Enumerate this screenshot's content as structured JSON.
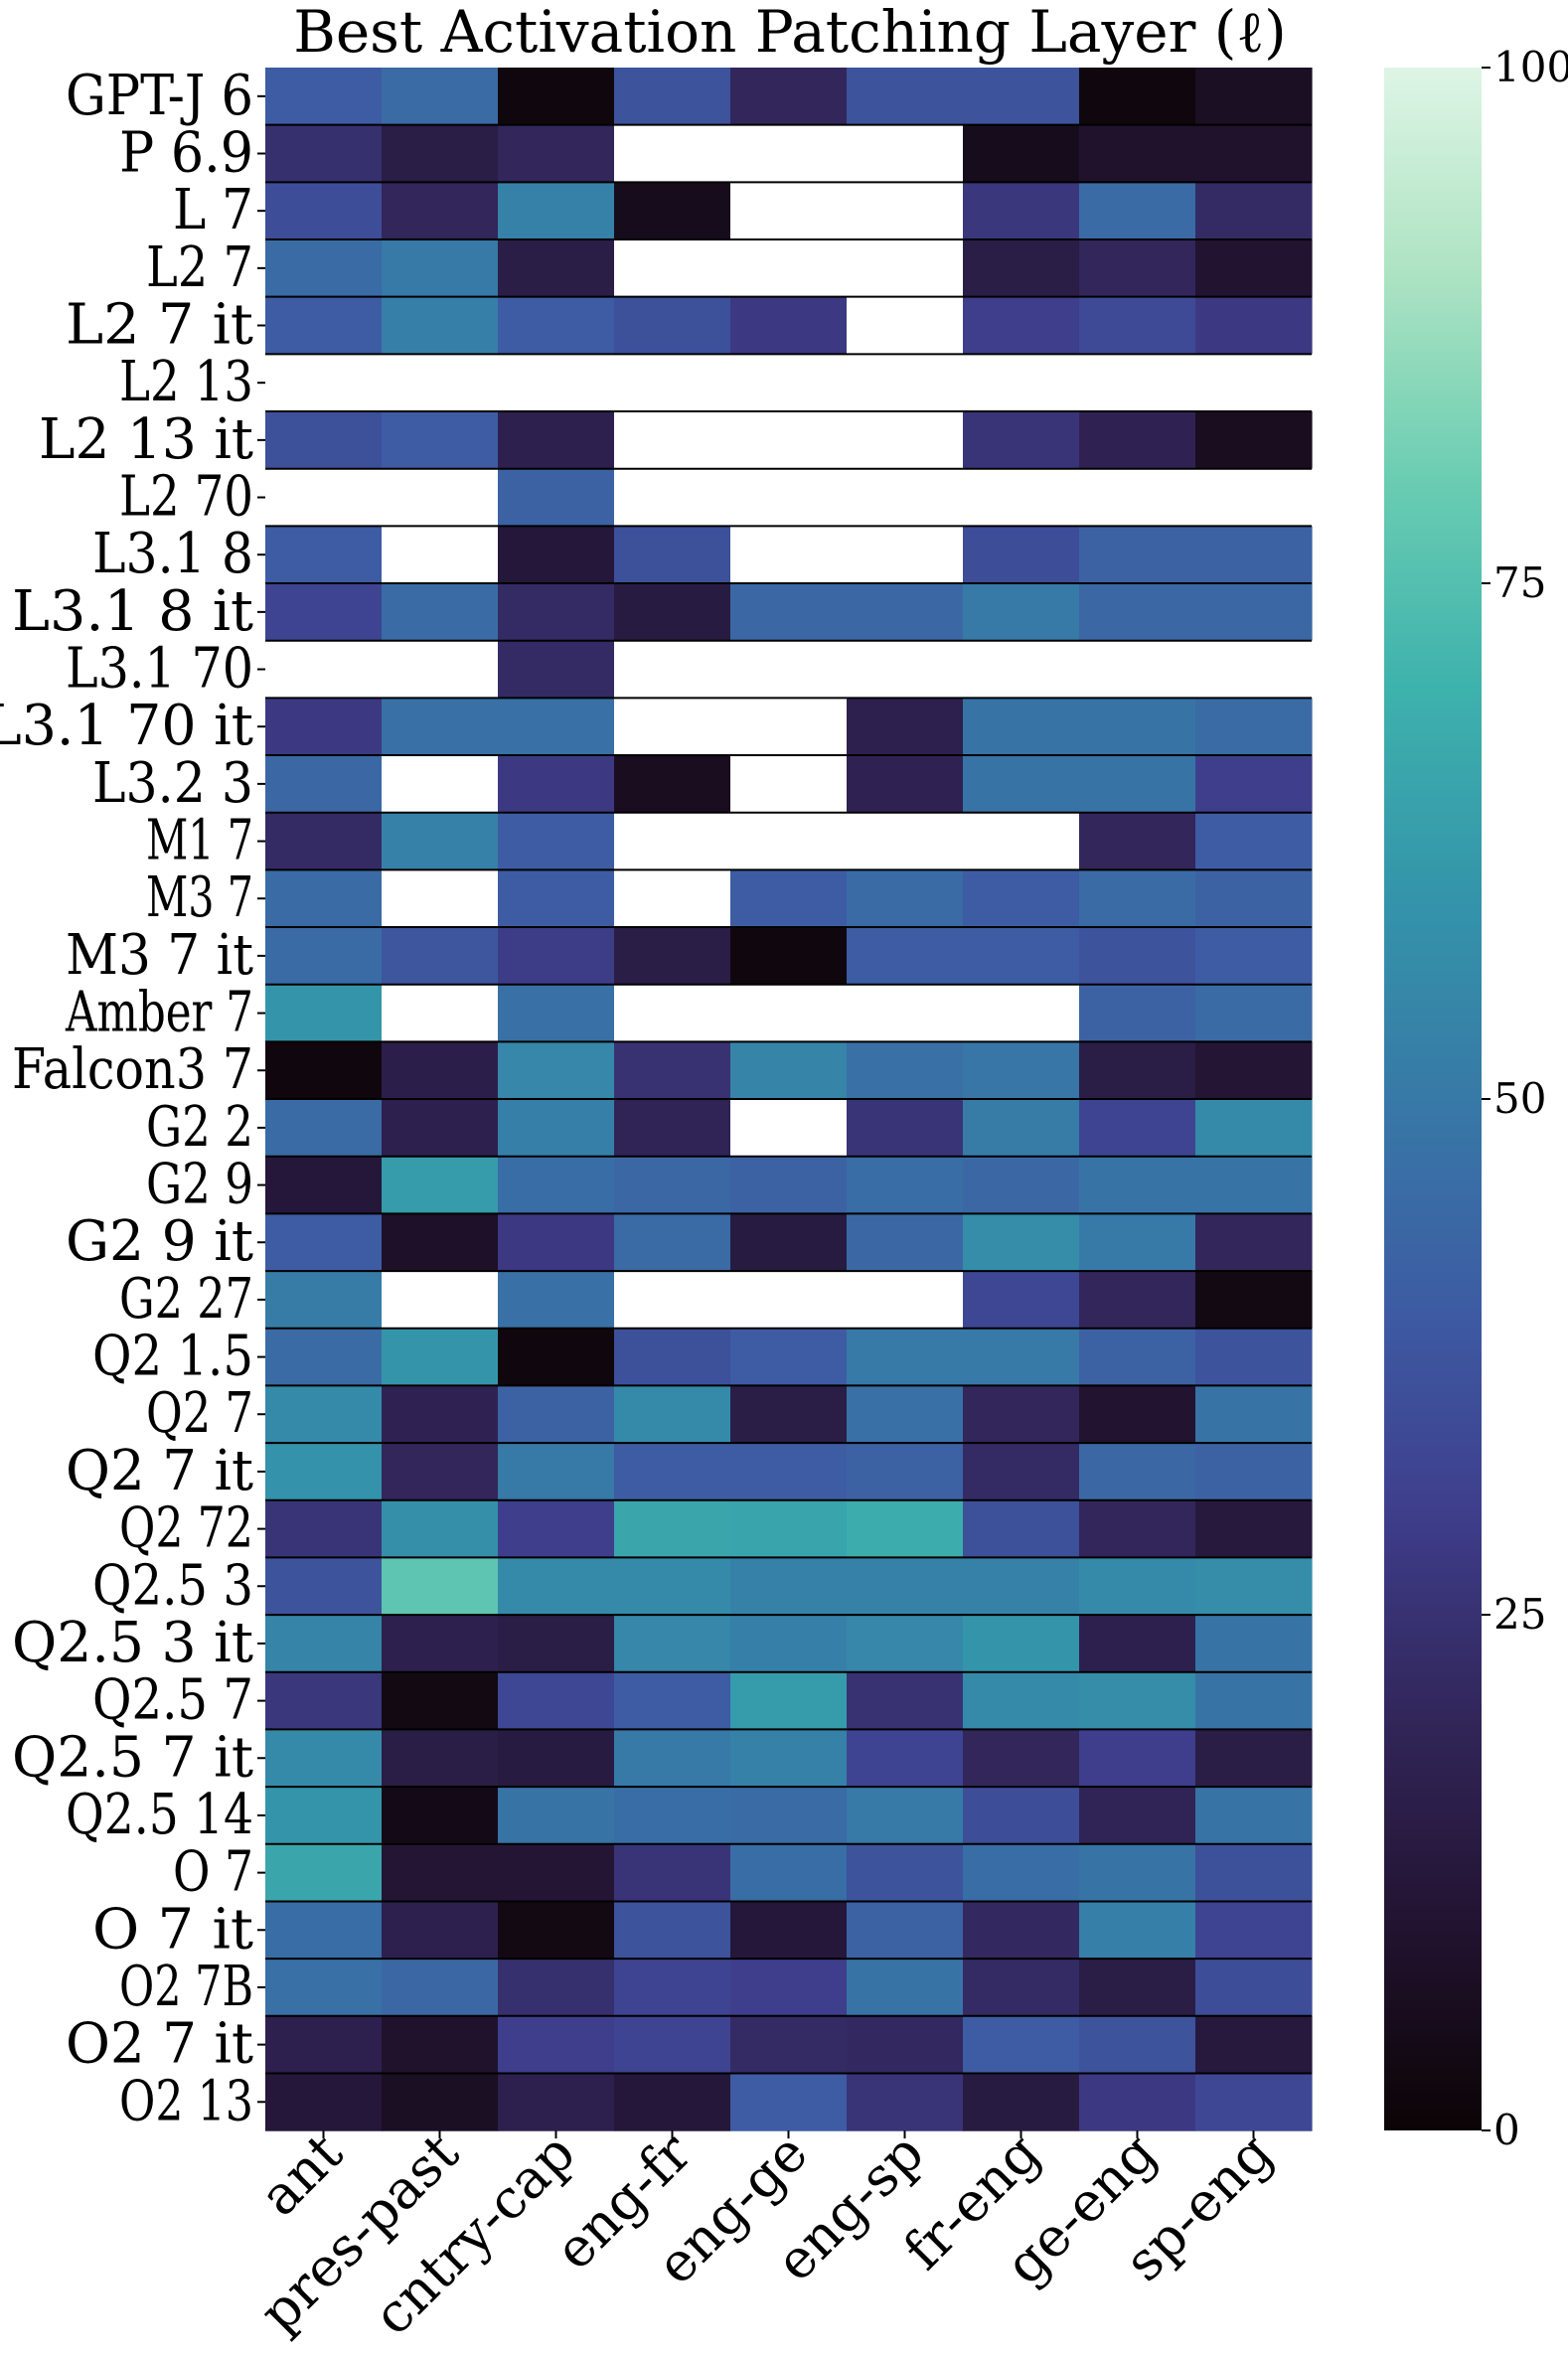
{
  "chart_data": {
    "type": "heatmap",
    "title": "Best Activation Patching Layer (ℓ)",
    "colorbar": {
      "min": 0,
      "max": 100,
      "ticks": [
        "0",
        "25",
        "50",
        "75",
        "100"
      ],
      "colormap": "mako"
    },
    "columns": [
      "ant",
      "pres-past",
      "cntry-cap",
      "eng-fr",
      "eng-ge",
      "eng-sp",
      "fr-eng",
      "ge-eng",
      "sp-eng"
    ],
    "rows": [
      "GPT-J 6",
      "P 6.9",
      "L 7",
      "L2 7",
      "L2 7 it",
      "L2 13",
      "L2 13 it",
      "L2 70",
      "L3.1 8",
      "L3.1 8 it",
      "L3.1 70",
      "L3.1 70 it",
      "L3.2 3",
      "M1 7",
      "M3 7",
      "M3 7 it",
      "Amber 7",
      "Falcon3 7",
      "G2 2",
      "G2 9",
      "G2 9 it",
      "G2 27",
      "Q2 1.5",
      "Q2 7",
      "Q2 7 it",
      "Q2 72",
      "Q2.5 3",
      "Q2.5 3 it",
      "Q2.5 7",
      "Q2.5 7 it",
      "Q2.5 14",
      "O 7",
      "O 7 it",
      "O2 7B",
      "O2 7 it",
      "O2 13"
    ],
    "missing_value_color": "#ffffff",
    "values": [
      [
        40,
        45,
        2,
        37,
        20,
        37,
        37,
        2,
        7
      ],
      [
        24,
        15,
        20,
        null,
        null,
        null,
        5,
        9,
        9
      ],
      [
        35,
        20,
        53,
        5,
        null,
        null,
        27,
        45,
        22
      ],
      [
        45,
        50,
        15,
        null,
        null,
        null,
        15,
        20,
        10
      ],
      [
        40,
        52,
        40,
        36,
        28,
        null,
        30,
        34,
        28
      ],
      [
        null,
        null,
        null,
        null,
        null,
        null,
        null,
        null,
        null
      ],
      [
        36,
        40,
        17,
        null,
        null,
        null,
        26,
        18,
        6
      ],
      [
        null,
        null,
        42,
        null,
        null,
        null,
        null,
        null,
        null
      ],
      [
        40,
        null,
        12,
        36,
        null,
        null,
        35,
        42,
        42
      ],
      [
        32,
        45,
        22,
        14,
        44,
        44,
        50,
        44,
        44
      ],
      [
        null,
        null,
        22,
        null,
        null,
        null,
        null,
        null,
        null
      ],
      [
        28,
        47,
        47,
        null,
        null,
        17,
        48,
        48,
        45
      ],
      [
        44,
        null,
        28,
        6,
        null,
        18,
        48,
        48,
        30
      ],
      [
        22,
        53,
        40,
        null,
        null,
        null,
        null,
        20,
        40
      ],
      [
        45,
        null,
        40,
        null,
        40,
        45,
        40,
        45,
        42
      ],
      [
        45,
        38,
        29,
        15,
        2,
        40,
        40,
        37,
        40
      ],
      [
        60,
        null,
        47,
        null,
        null,
        null,
        null,
        42,
        45
      ],
      [
        2,
        16,
        55,
        25,
        54,
        47,
        49,
        15,
        11
      ],
      [
        45,
        17,
        52,
        19,
        null,
        26,
        51,
        32,
        56
      ],
      [
        12,
        62,
        46,
        44,
        42,
        46,
        44,
        48,
        48
      ],
      [
        40,
        8,
        28,
        45,
        14,
        44,
        57,
        50,
        20
      ],
      [
        51,
        null,
        47,
        null,
        null,
        null,
        33,
        20,
        3
      ],
      [
        45,
        60,
        2,
        36,
        40,
        50,
        50,
        42,
        37
      ],
      [
        56,
        18,
        42,
        56,
        15,
        47,
        20,
        10,
        48
      ],
      [
        59,
        20,
        50,
        40,
        40,
        42,
        22,
        44,
        42
      ],
      [
        26,
        58,
        30,
        66,
        65,
        68,
        36,
        20,
        13
      ],
      [
        37,
        77,
        56,
        56,
        53,
        53,
        53,
        56,
        57
      ],
      [
        54,
        17,
        15,
        55,
        52,
        55,
        60,
        17,
        48
      ],
      [
        27,
        3,
        33,
        40,
        62,
        25,
        56,
        57,
        48
      ],
      [
        56,
        15,
        14,
        50,
        53,
        32,
        20,
        30,
        15
      ],
      [
        60,
        4,
        48,
        46,
        45,
        50,
        35,
        19,
        48
      ],
      [
        66,
        11,
        11,
        26,
        46,
        37,
        46,
        48,
        36
      ],
      [
        46,
        17,
        3,
        37,
        12,
        42,
        21,
        52,
        32
      ],
      [
        47,
        44,
        24,
        32,
        30,
        48,
        22,
        15,
        35
      ],
      [
        17,
        9,
        30,
        32,
        22,
        21,
        40,
        37,
        13
      ],
      [
        12,
        7,
        17,
        12,
        40,
        26,
        14,
        28,
        33
      ]
    ]
  }
}
